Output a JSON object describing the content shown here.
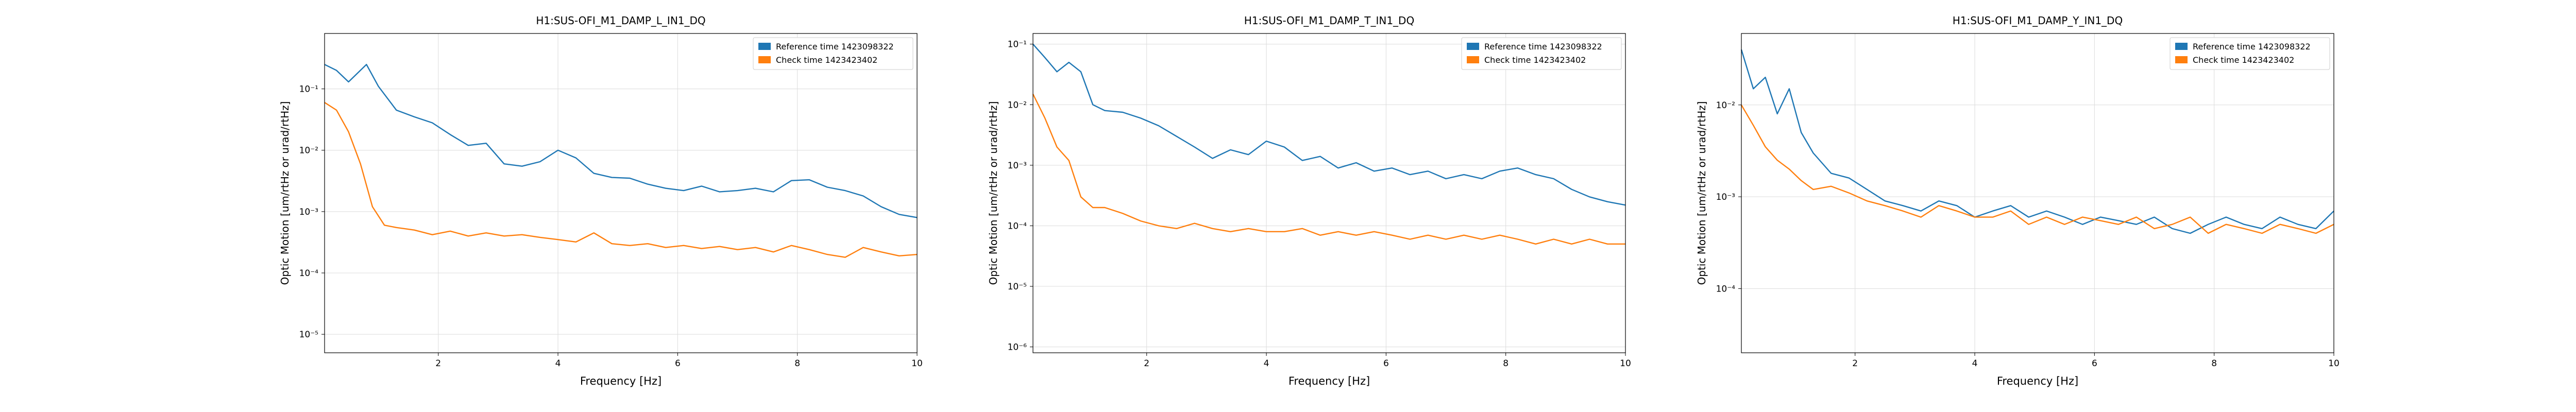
{
  "colors": {
    "reference": "#1f77b4",
    "check": "#ff7f0e",
    "grid": "#dcdcdc",
    "axes": "#000000"
  },
  "chart_data": [
    {
      "type": "line",
      "title": "H1:SUS-OFI_M1_DAMP_L_IN1_DQ",
      "xlabel": "Frequency [Hz]",
      "ylabel": "Optic Motion [um/rtHz or urad/rtHz]",
      "xlim": [
        0.1,
        10
      ],
      "yscale": "log",
      "ylim": [
        5e-06,
        0.8
      ],
      "xticks": [
        "2",
        "4",
        "6",
        "8",
        "10"
      ],
      "yticks": [
        {
          "value": 1e-05,
          "label": "10⁻⁵"
        },
        {
          "value": 0.0001,
          "label": "10⁻⁴"
        },
        {
          "value": 0.001,
          "label": "10⁻³"
        },
        {
          "value": 0.01,
          "label": "10⁻²"
        },
        {
          "value": 0.1,
          "label": "10⁻¹"
        }
      ],
      "grid": true,
      "legend": "top-right",
      "series": [
        {
          "name": "Reference time 1423098322",
          "color": "#1f77b4",
          "x": [
            0.1,
            0.3,
            0.5,
            0.8,
            1.0,
            1.3,
            1.6,
            1.9,
            2.2,
            2.5,
            2.8,
            3.1,
            3.4,
            3.7,
            4.0,
            4.3,
            4.6,
            4.9,
            5.2,
            5.5,
            5.8,
            6.1,
            6.4,
            6.7,
            7.0,
            7.3,
            7.6,
            7.9,
            8.2,
            8.5,
            8.8,
            9.1,
            9.4,
            9.7,
            10.0
          ],
          "y": [
            0.25,
            0.2,
            0.13,
            0.25,
            0.11,
            0.045,
            0.035,
            0.028,
            0.018,
            0.012,
            0.013,
            0.006,
            0.0055,
            0.0065,
            0.01,
            0.0075,
            0.0042,
            0.0036,
            0.0035,
            0.0028,
            0.0024,
            0.0022,
            0.0026,
            0.0021,
            0.0022,
            0.0024,
            0.0021,
            0.0032,
            0.0033,
            0.0025,
            0.0022,
            0.0018,
            0.0012,
            0.0009,
            0.0008
          ]
        },
        {
          "name": "Check time 1423423402",
          "color": "#ff7f0e",
          "x": [
            0.1,
            0.3,
            0.5,
            0.7,
            0.9,
            1.1,
            1.3,
            1.6,
            1.9,
            2.2,
            2.5,
            2.8,
            3.1,
            3.4,
            3.7,
            4.0,
            4.3,
            4.6,
            4.9,
            5.2,
            5.5,
            5.8,
            6.1,
            6.4,
            6.7,
            7.0,
            7.3,
            7.6,
            7.9,
            8.2,
            8.5,
            8.8,
            9.1,
            9.4,
            9.7,
            10.0
          ],
          "y": [
            0.06,
            0.045,
            0.02,
            0.006,
            0.0012,
            0.0006,
            0.00055,
            0.0005,
            0.00042,
            0.00048,
            0.0004,
            0.00045,
            0.0004,
            0.00042,
            0.00038,
            0.00035,
            0.00032,
            0.00045,
            0.0003,
            0.00028,
            0.0003,
            0.00026,
            0.00028,
            0.00025,
            0.00027,
            0.00024,
            0.00026,
            0.00022,
            0.00028,
            0.00024,
            0.0002,
            0.00018,
            0.00026,
            0.00022,
            0.00019,
            0.0002
          ]
        }
      ]
    },
    {
      "type": "line",
      "title": "H1:SUS-OFI_M1_DAMP_T_IN1_DQ",
      "xlabel": "Frequency [Hz]",
      "ylabel": "Optic Motion [um/rtHz or urad/rtHz]",
      "xlim": [
        0.1,
        10
      ],
      "yscale": "log",
      "ylim": [
        8e-07,
        0.15
      ],
      "xticks": [
        "2",
        "4",
        "6",
        "8",
        "10"
      ],
      "yticks": [
        {
          "value": 1e-06,
          "label": "10⁻⁶"
        },
        {
          "value": 1e-05,
          "label": "10⁻⁵"
        },
        {
          "value": 0.0001,
          "label": "10⁻⁴"
        },
        {
          "value": 0.001,
          "label": "10⁻³"
        },
        {
          "value": 0.01,
          "label": "10⁻²"
        },
        {
          "value": 0.1,
          "label": "10⁻¹"
        }
      ],
      "grid": true,
      "legend": "top-right",
      "series": [
        {
          "name": "Reference time 1423098322",
          "color": "#1f77b4",
          "x": [
            0.1,
            0.3,
            0.5,
            0.7,
            0.9,
            1.1,
            1.3,
            1.6,
            1.9,
            2.2,
            2.5,
            2.8,
            3.1,
            3.4,
            3.7,
            4.0,
            4.3,
            4.6,
            4.9,
            5.2,
            5.5,
            5.8,
            6.1,
            6.4,
            6.7,
            7.0,
            7.3,
            7.6,
            7.9,
            8.2,
            8.5,
            8.8,
            9.1,
            9.4,
            9.7,
            10.0
          ],
          "y": [
            0.1,
            0.06,
            0.035,
            0.05,
            0.035,
            0.01,
            0.008,
            0.0075,
            0.006,
            0.0045,
            0.003,
            0.002,
            0.0013,
            0.0018,
            0.0015,
            0.0025,
            0.002,
            0.0012,
            0.0014,
            0.0009,
            0.0011,
            0.0008,
            0.0009,
            0.0007,
            0.0008,
            0.0006,
            0.0007,
            0.0006,
            0.0008,
            0.0009,
            0.0007,
            0.0006,
            0.0004,
            0.0003,
            0.00025,
            0.00022
          ]
        },
        {
          "name": "Check time 1423423402",
          "color": "#ff7f0e",
          "x": [
            0.1,
            0.3,
            0.5,
            0.7,
            0.9,
            1.1,
            1.3,
            1.6,
            1.9,
            2.2,
            2.5,
            2.8,
            3.1,
            3.4,
            3.7,
            4.0,
            4.3,
            4.6,
            4.9,
            5.2,
            5.5,
            5.8,
            6.1,
            6.4,
            6.7,
            7.0,
            7.3,
            7.6,
            7.9,
            8.2,
            8.5,
            8.8,
            9.1,
            9.4,
            9.7,
            10.0
          ],
          "y": [
            0.015,
            0.006,
            0.002,
            0.0012,
            0.0003,
            0.0002,
            0.0002,
            0.00016,
            0.00012,
            0.0001,
            9e-05,
            0.00011,
            9e-05,
            8e-05,
            9e-05,
            8e-05,
            8e-05,
            9e-05,
            7e-05,
            8e-05,
            7e-05,
            8e-05,
            7e-05,
            6e-05,
            7e-05,
            6e-05,
            7e-05,
            6e-05,
            7e-05,
            6e-05,
            5e-05,
            6e-05,
            5e-05,
            6e-05,
            5e-05,
            5e-05
          ]
        }
      ]
    },
    {
      "type": "line",
      "title": "H1:SUS-OFI_M1_DAMP_Y_IN1_DQ",
      "xlabel": "Frequency [Hz]",
      "ylabel": "Optic Motion [um/rtHz or urad/rtHz]",
      "xlim": [
        0.1,
        10
      ],
      "yscale": "log",
      "ylim": [
        2e-05,
        0.06
      ],
      "xticks": [
        "2",
        "4",
        "6",
        "8",
        "10"
      ],
      "yticks": [
        {
          "value": 0.0001,
          "label": "10⁻⁴"
        },
        {
          "value": 0.001,
          "label": "10⁻³"
        },
        {
          "value": 0.01,
          "label": "10⁻²"
        }
      ],
      "grid": true,
      "legend": "top-right",
      "series": [
        {
          "name": "Reference time 1423098322",
          "color": "#1f77b4",
          "x": [
            0.1,
            0.3,
            0.5,
            0.7,
            0.9,
            1.1,
            1.3,
            1.6,
            1.9,
            2.2,
            2.5,
            2.8,
            3.1,
            3.4,
            3.7,
            4.0,
            4.3,
            4.6,
            4.9,
            5.2,
            5.5,
            5.8,
            6.1,
            6.4,
            6.7,
            7.0,
            7.3,
            7.6,
            7.9,
            8.2,
            8.5,
            8.8,
            9.1,
            9.4,
            9.7,
            10.0
          ],
          "y": [
            0.04,
            0.015,
            0.02,
            0.008,
            0.015,
            0.005,
            0.003,
            0.0018,
            0.0016,
            0.0012,
            0.0009,
            0.0008,
            0.0007,
            0.0009,
            0.0008,
            0.0006,
            0.0007,
            0.0008,
            0.0006,
            0.0007,
            0.0006,
            0.0005,
            0.0006,
            0.00055,
            0.0005,
            0.0006,
            0.00045,
            0.0004,
            0.0005,
            0.0006,
            0.0005,
            0.00045,
            0.0006,
            0.0005,
            0.00045,
            0.0007
          ]
        },
        {
          "name": "Check time 1423423402",
          "color": "#ff7f0e",
          "x": [
            0.1,
            0.3,
            0.5,
            0.7,
            0.9,
            1.1,
            1.3,
            1.6,
            1.9,
            2.2,
            2.5,
            2.8,
            3.1,
            3.4,
            3.7,
            4.0,
            4.3,
            4.6,
            4.9,
            5.2,
            5.5,
            5.8,
            6.1,
            6.4,
            6.7,
            7.0,
            7.3,
            7.6,
            7.9,
            8.2,
            8.5,
            8.8,
            9.1,
            9.4,
            9.7,
            10.0
          ],
          "y": [
            0.01,
            0.006,
            0.0035,
            0.0025,
            0.002,
            0.0015,
            0.0012,
            0.0013,
            0.0011,
            0.0009,
            0.0008,
            0.0007,
            0.0006,
            0.0008,
            0.0007,
            0.0006,
            0.0006,
            0.0007,
            0.0005,
            0.0006,
            0.0005,
            0.0006,
            0.00055,
            0.0005,
            0.0006,
            0.00045,
            0.0005,
            0.0006,
            0.0004,
            0.0005,
            0.00045,
            0.0004,
            0.0005,
            0.00045,
            0.0004,
            0.0005
          ]
        }
      ]
    }
  ]
}
